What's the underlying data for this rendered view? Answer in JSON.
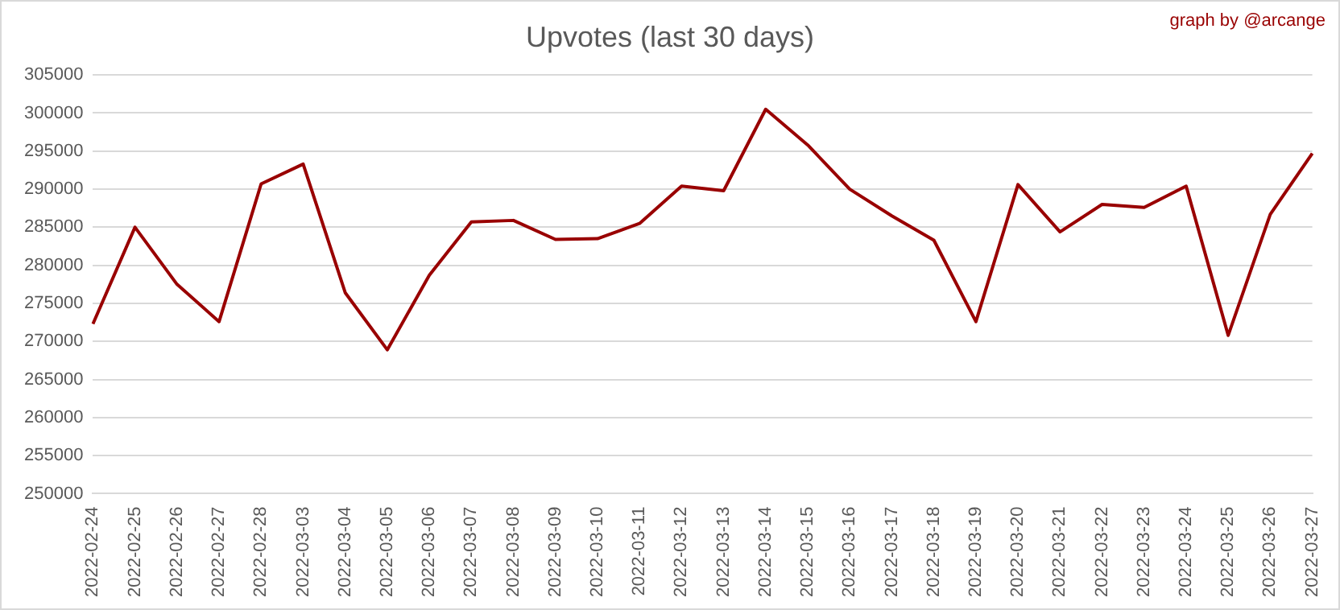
{
  "chart_data": {
    "type": "line",
    "title": "Upvotes (last 30 days)",
    "annotations": [
      "graph by @arcange"
    ],
    "categories": [
      "2022-02-24",
      "2022-02-25",
      "2022-02-26",
      "2022-02-27",
      "2022-02-28",
      "2022-03-03",
      "2022-03-04",
      "2022-03-05",
      "2022-03-06",
      "2022-03-07",
      "2022-03-08",
      "2022-03-09",
      "2022-03-10",
      "2022-03-11",
      "2022-03-12",
      "2022-03-13",
      "2022-03-14",
      "2022-03-15",
      "2022-03-16",
      "2022-03-17",
      "2022-03-18",
      "2022-03-19",
      "2022-03-20",
      "2022-03-21",
      "2022-03-22",
      "2022-03-23",
      "2022-03-24",
      "2022-03-25",
      "2022-03-26",
      "2022-03-27"
    ],
    "series": [
      {
        "color": "#990000",
        "values": [
          272300,
          285000,
          277500,
          272600,
          290700,
          293300,
          276400,
          268900,
          278700,
          285700,
          285900,
          283400,
          283500,
          285500,
          290400,
          289800,
          300500,
          295800,
          290000,
          286500,
          283300,
          272600,
          290600,
          284400,
          288000,
          287600,
          290400,
          270800,
          286700,
          294700
        ]
      }
    ],
    "ylim": [
      250000,
      305000
    ],
    "yticks": [
      250000,
      255000,
      260000,
      265000,
      270000,
      275000,
      280000,
      285000,
      290000,
      295000,
      300000,
      305000
    ],
    "grid": "y",
    "legend": false,
    "marker": "none",
    "line_style": "solid"
  }
}
